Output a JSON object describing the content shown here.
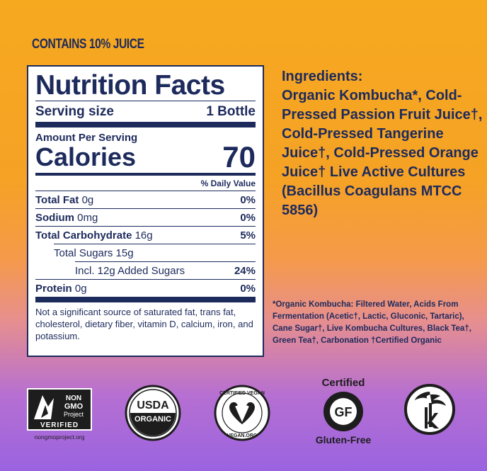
{
  "banner": "CONTAINS 10% JUICE",
  "nutrition": {
    "title": "Nutrition Facts",
    "serving_label": "Serving size",
    "serving_value": "1 Bottle",
    "amount_per_serving": "Amount Per Serving",
    "calories_label": "Calories",
    "calories_value": "70",
    "dv_header": "% Daily Value",
    "rows": [
      {
        "name": "Total Fat",
        "amount": "0g",
        "dv": "0%"
      },
      {
        "name": "Sodium",
        "amount": "0mg",
        "dv": "0%"
      },
      {
        "name": "Total Carbohydrate",
        "amount": "16g",
        "dv": "5%"
      },
      {
        "name": "Total Sugars 15g",
        "amount": "",
        "dv": ""
      },
      {
        "name": "Incl. 12g Added Sugars",
        "amount": "",
        "dv": "24%"
      },
      {
        "name": "Protein",
        "amount": "0g",
        "dv": "0%"
      }
    ],
    "footnote": "Not a significant source of saturated fat, trans fat, cholesterol, dietary fiber, vitamin D, calcium, iron, and potassium."
  },
  "ingredients": {
    "heading": "Ingredients:",
    "text": "Organic Kombucha*, Cold-Pressed Passion Fruit Juice†, Cold-Pressed Tangerine Juice†, Cold-Pressed Orange Juice† Live Active Cultures (Bacillus Coagulans MTCC 5856)"
  },
  "kombucha_note": "*Organic Kombucha: Filtered Water, Acids From Fermentation (Acetic†, Lactic, Gluconic, Tartaric), Cane Sugar†, Live Kombucha Cultures, Black Tea†, Green Tea†, Carbonation †Certified Organic",
  "logos": {
    "nongmo_l1": "NON",
    "nongmo_l2": "GMO",
    "nongmo_l3": "Project",
    "nongmo_verified": "VERIFIED",
    "nongmo_url": "nongmoproject.org",
    "usda_l1": "USDA",
    "usda_l2": "ORGANIC",
    "vegan_top": "CERTIFIED VEGAN",
    "vegan_bottom": "VEGAN.ORG",
    "gf_top": "Certified",
    "gf_mark": "GF",
    "gf_bottom": "Gluten-Free"
  }
}
